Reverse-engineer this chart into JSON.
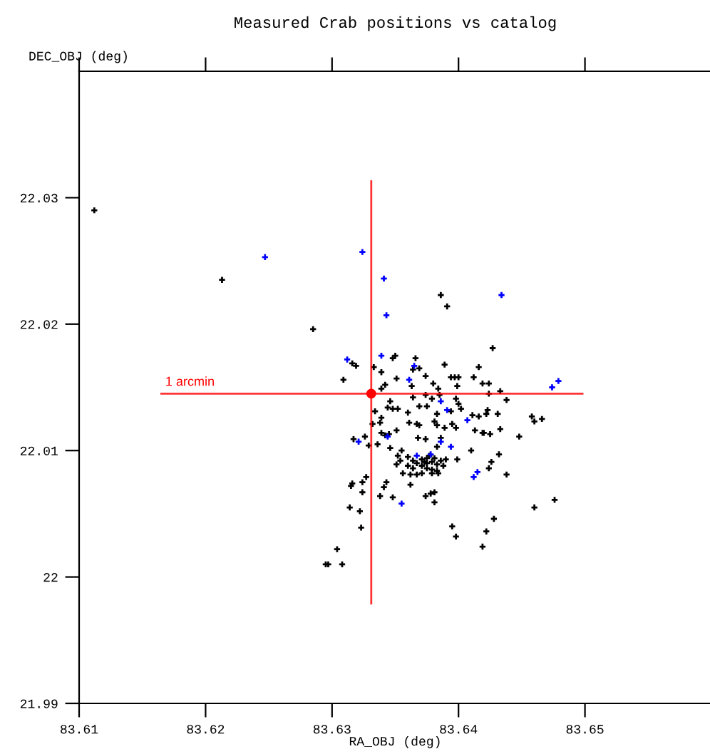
{
  "chart_data": {
    "type": "scatter",
    "title": "Measured Crab positions vs catalog",
    "xlabel": "RA_OBJ (deg)",
    "ylabel": "DEC_OBJ (deg)",
    "xlim": [
      83.61,
      83.66
    ],
    "ylim": [
      21.99,
      22.04
    ],
    "xticks": [
      83.61,
      83.62,
      83.63,
      83.64,
      83.65
    ],
    "yticks": [
      21.99,
      22,
      22.01,
      22.02,
      22.03
    ],
    "grid": false,
    "legend": false,
    "annotations": [
      {
        "text": "1 arcmin",
        "x": 83.6165,
        "y": 22.0145
      }
    ],
    "series": [
      {
        "marker": "cross",
        "color": "#000000",
        "x": [
          83.6112,
          83.6213,
          83.6285,
          83.6386,
          83.6391,
          83.6427,
          83.6316,
          83.6319,
          83.635,
          83.6348,
          83.6366,
          83.6364,
          83.6369,
          83.6389,
          83.6333,
          83.6339,
          83.6416,
          83.6374,
          83.6394,
          83.6397,
          83.64,
          83.6412,
          83.6309,
          83.6351,
          83.6363,
          83.638,
          83.6399,
          83.6419,
          83.6424,
          83.6342,
          83.6339,
          83.6384,
          83.6424,
          83.6433,
          83.6374,
          83.6364,
          83.6379,
          83.6385,
          83.6438,
          83.6346,
          83.6398,
          83.64,
          83.6344,
          83.6348,
          83.6352,
          83.6369,
          83.6375,
          83.6394,
          83.6402,
          83.636,
          83.6423,
          83.6431,
          83.6422,
          83.6383,
          83.6411,
          83.6416,
          83.6458,
          83.6466,
          83.646,
          83.6334,
          83.6332,
          83.6339,
          83.6338,
          83.6351,
          83.6361,
          83.6367,
          83.6369,
          83.6381,
          83.6383,
          83.6389,
          83.6395,
          83.6398,
          83.6413,
          83.6419,
          83.6425,
          83.6433,
          83.6448,
          83.6339,
          83.6342,
          83.6345,
          83.6326,
          83.6317,
          83.6368,
          83.6374,
          83.6386,
          83.6329,
          83.6336,
          83.6346,
          83.6355,
          83.6383,
          83.641,
          83.642,
          83.636,
          83.6364,
          83.6367,
          83.6371,
          83.6375,
          83.6379,
          83.6383,
          83.6386,
          83.6371,
          83.6375,
          83.6379,
          83.6383,
          83.6364,
          83.636,
          83.6354,
          83.6352,
          83.6351,
          83.6356,
          83.6362,
          83.6367,
          83.6371,
          83.6379,
          83.6384,
          83.6388,
          83.639,
          83.6399,
          83.6375,
          83.6377,
          83.6381,
          83.6373,
          83.6426,
          83.6424,
          83.6432,
          83.6438,
          83.6327,
          83.6324,
          83.6316,
          83.6315,
          83.6324,
          83.6343,
          83.6341,
          83.6338,
          83.6348,
          83.6362,
          83.6374,
          83.6378,
          83.6381,
          83.6381,
          83.6314,
          83.6322,
          83.6323,
          83.6395,
          83.6398,
          83.6428,
          83.6422,
          83.6419,
          83.6304,
          83.6295,
          83.6297,
          83.6308,
          83.646,
          83.6476
        ],
        "values": [
          22.029,
          22.0235,
          22.0196,
          22.0223,
          22.0214,
          22.0181,
          22.0169,
          22.0167,
          22.0175,
          22.0173,
          22.0173,
          22.0164,
          22.0165,
          22.0168,
          22.0166,
          22.0162,
          22.0166,
          22.0159,
          22.0158,
          22.0158,
          22.0158,
          22.0158,
          22.0156,
          22.0157,
          22.0151,
          22.0153,
          22.0151,
          22.0153,
          22.0153,
          22.0152,
          22.0149,
          22.0149,
          22.0145,
          22.0147,
          22.0144,
          22.0142,
          22.0141,
          22.0144,
          22.014,
          22.0139,
          22.0141,
          22.0137,
          22.0134,
          22.0133,
          22.0133,
          22.0135,
          22.0135,
          22.0131,
          22.0133,
          22.013,
          22.0132,
          22.0129,
          22.0129,
          22.0129,
          22.0128,
          22.0127,
          22.0127,
          22.0125,
          22.0123,
          22.0131,
          22.0121,
          22.0126,
          22.0122,
          22.0116,
          22.0122,
          22.0121,
          22.012,
          22.0123,
          22.012,
          22.0118,
          22.0121,
          22.0118,
          22.0116,
          22.0114,
          22.0113,
          22.0117,
          22.0111,
          22.0114,
          22.0112,
          22.0113,
          22.0111,
          22.0109,
          22.011,
          22.0109,
          22.011,
          22.0104,
          22.0105,
          22.0102,
          22.01,
          22.0103,
          22.01,
          22.0114,
          22.0095,
          22.0092,
          22.009,
          22.0093,
          22.0094,
          22.0091,
          22.0089,
          22.0092,
          22.0088,
          22.0086,
          22.0085,
          22.0084,
          22.0086,
          22.0088,
          22.0092,
          22.0096,
          22.0089,
          22.0082,
          22.0081,
          22.0081,
          22.0082,
          22.0082,
          22.0082,
          22.0088,
          22.0093,
          22.0093,
          22.009,
          22.0096,
          22.0094,
          22.0091,
          22.0091,
          22.0086,
          22.0097,
          22.0081,
          22.0079,
          22.0075,
          22.0074,
          22.0072,
          22.0067,
          22.0075,
          22.0071,
          22.0064,
          22.0063,
          22.0073,
          22.0064,
          22.0066,
          22.0067,
          22.0059,
          22.0055,
          22.0052,
          22.0039,
          22.004,
          22.0032,
          22.0046,
          22.0036,
          22.0024,
          22.0022,
          22.001,
          22.001,
          22.001,
          22.0055,
          22.0061
        ]
      },
      {
        "marker": "cross",
        "color": "#0000ff",
        "x": [
          83.6247,
          83.6324,
          83.6341,
          83.6343,
          83.6434,
          83.6312,
          83.6339,
          83.6365,
          83.6361,
          83.6474,
          83.6479,
          83.6386,
          83.6391,
          83.6407,
          83.6344,
          83.6321,
          83.6386,
          83.6394,
          83.6367,
          83.6378,
          83.6415,
          83.6412,
          83.6355
        ],
        "values": [
          22.0253,
          22.0257,
          22.0236,
          22.0207,
          22.0223,
          22.0172,
          22.0175,
          22.0167,
          22.0156,
          22.015,
          22.0155,
          22.0139,
          22.0132,
          22.0124,
          22.0111,
          22.0107,
          22.0107,
          22.0103,
          22.0096,
          22.0097,
          22.0083,
          22.0079,
          22.0058
        ]
      },
      {
        "type": "line",
        "marker": "none",
        "color": "#ff0000",
        "x": [
          83.6165,
          83.6498
        ],
        "values": [
          22.0145,
          22.0145
        ]
      },
      {
        "type": "line",
        "marker": "none",
        "color": "#ff0000",
        "x": [
          83.6331,
          83.6331
        ],
        "values": [
          22.0313,
          21.9979
        ]
      },
      {
        "marker": "circle",
        "color": "#ff0000",
        "x": [
          83.6331
        ],
        "values": [
          22.0145
        ]
      }
    ]
  }
}
